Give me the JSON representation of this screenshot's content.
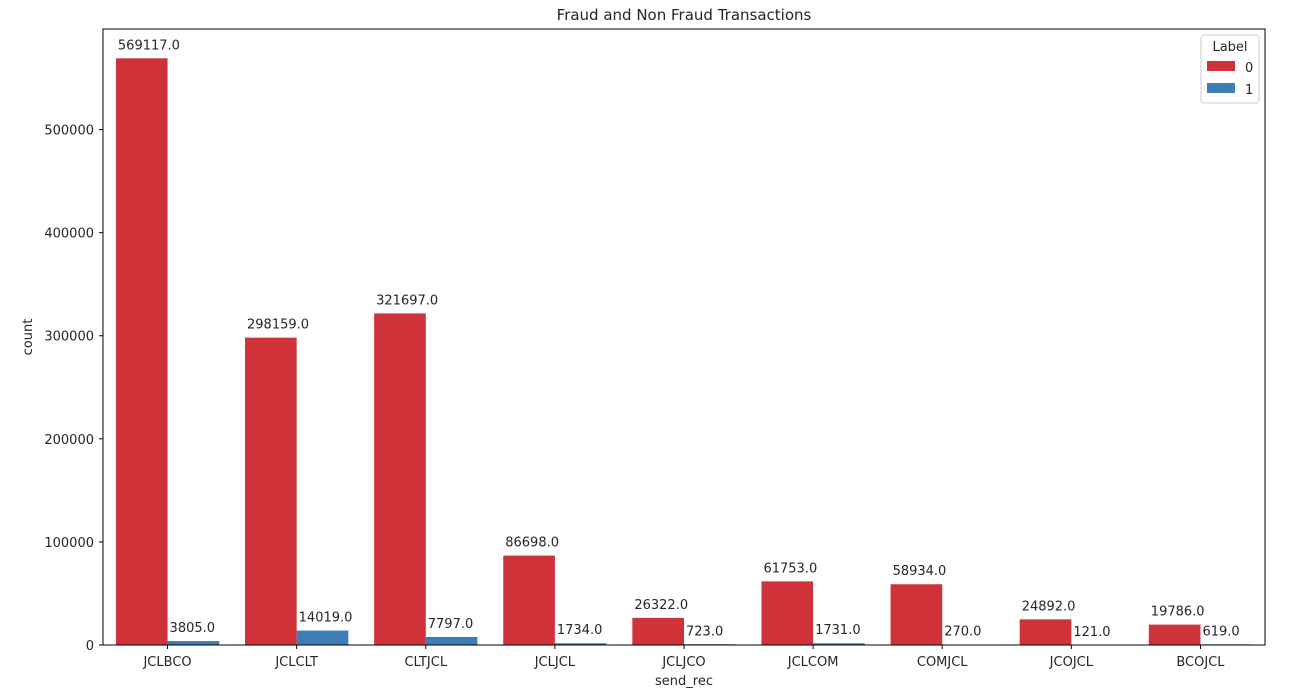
{
  "chart_data": {
    "type": "bar",
    "title": "Fraud and Non Fraud Transactions",
    "xlabel": "send_rec",
    "ylabel": "count",
    "categories": [
      "JCLBCO",
      "JCLCLT",
      "CLTJCL",
      "JCLJCL",
      "JCLJCO",
      "JCLCOM",
      "COMJCL",
      "JCOJCL",
      "BCOJCL"
    ],
    "series": [
      {
        "name": "0",
        "color": "#d0323a",
        "values": [
          569117.0,
          298159.0,
          321697.0,
          86698.0,
          26322.0,
          61753.0,
          58934.0,
          24892.0,
          19786.0
        ],
        "labels": [
          "569117.0",
          "298159.0",
          "321697.0",
          "86698.0",
          "26322.0",
          "61753.0",
          "58934.0",
          "24892.0",
          "19786.0"
        ]
      },
      {
        "name": "1",
        "color": "#3f7db7",
        "values": [
          3805.0,
          14019.0,
          7797.0,
          1734.0,
          723.0,
          1731.0,
          270.0,
          121.0,
          619.0
        ],
        "labels": [
          "3805.0",
          "14019.0",
          "7797.0",
          "1734.0",
          "723.0",
          "1731.0",
          "270.0",
          "121.0",
          "619.0"
        ]
      }
    ],
    "ylim": [
      0,
      597573
    ],
    "yticks": [
      0,
      100000,
      200000,
      300000,
      400000,
      500000
    ],
    "ytick_labels": [
      "0",
      "100000",
      "200000",
      "300000",
      "400000",
      "500000"
    ],
    "legend": {
      "title": "Label",
      "placement": "top-right"
    },
    "grid": false
  }
}
